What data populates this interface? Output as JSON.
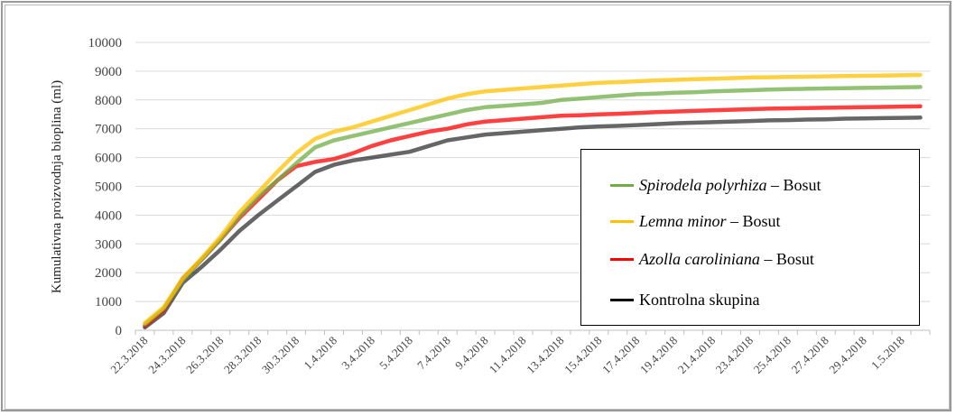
{
  "chart_data": {
    "type": "line",
    "title": "",
    "xlabel": "",
    "ylabel": "Kumulativna proizvodnja bioplina (ml)",
    "ylim": [
      0,
      10000
    ],
    "yticks": [
      0,
      1000,
      2000,
      3000,
      4000,
      5000,
      6000,
      7000,
      8000,
      9000,
      10000
    ],
    "grid": true,
    "legend_placement": "right",
    "x": [
      "22.3.2018",
      "23.3.2018",
      "24.3.2018",
      "25.3.2018",
      "26.3.2018",
      "27.3.2018",
      "28.3.2018",
      "29.3.2018",
      "30.3.2018",
      "31.3.2018",
      "1.4.2018",
      "2.4.2018",
      "3.4.2018",
      "4.4.2018",
      "5.4.2018",
      "6.4.2018",
      "7.4.2018",
      "8.4.2018",
      "9.4.2018",
      "10.4.2018",
      "11.4.2018",
      "12.4.2018",
      "13.4.2018",
      "14.4.2018",
      "15.4.2018",
      "16.4.2018",
      "17.4.2018",
      "18.4.2018",
      "19.4.2018",
      "20.4.2018",
      "21.4.2018",
      "22.4.2018",
      "23.4.2018",
      "24.4.2018",
      "25.4.2018",
      "26.4.2018",
      "27.4.2018",
      "28.4.2018",
      "29.4.2018",
      "30.4.2018",
      "1.5.2018",
      "2.5.2018"
    ],
    "xtick_labels": [
      "22.3.2018",
      "24.3.2018",
      "26.3.2018",
      "28.3.2018",
      "30.3.2018",
      "1.4.2018",
      "3.4.2018",
      "5.4.2018",
      "7.4.2018",
      "9.4.2018",
      "11.4.2018",
      "13.4.2018",
      "15.4.2018",
      "17.4.2018",
      "19.4.2018",
      "21.4.2018",
      "23.4.2018",
      "25.4.2018",
      "27.4.2018",
      "29.4.2018",
      "1.5.2018"
    ],
    "series": [
      {
        "name_italic": "Spirodela polyrhiza",
        "name_suffix": " – Bosut",
        "color": "#70ad47",
        "values": [
          200,
          750,
          1750,
          2450,
          3150,
          3950,
          4650,
          5200,
          5800,
          6350,
          6600,
          6750,
          6900,
          7050,
          7200,
          7350,
          7500,
          7650,
          7750,
          7800,
          7850,
          7900,
          8000,
          8050,
          8100,
          8150,
          8200,
          8220,
          8250,
          8270,
          8300,
          8320,
          8340,
          8360,
          8380,
          8390,
          8400,
          8410,
          8420,
          8430,
          8440,
          8450
        ]
      },
      {
        "name_italic": "Lemna minor",
        "name_suffix": " – Bosut",
        "color": "#ffc000",
        "values": [
          250,
          800,
          1800,
          2500,
          3250,
          4100,
          4800,
          5500,
          6150,
          6650,
          6900,
          7050,
          7250,
          7450,
          7650,
          7850,
          8050,
          8200,
          8300,
          8350,
          8400,
          8450,
          8500,
          8550,
          8600,
          8620,
          8650,
          8680,
          8700,
          8720,
          8740,
          8760,
          8780,
          8790,
          8800,
          8810,
          8820,
          8830,
          8840,
          8850,
          8860,
          8870
        ]
      },
      {
        "name_italic": "Azolla caroliniana",
        "name_suffix": " – Bosut",
        "color": "#ff0000",
        "values": [
          150,
          700,
          1800,
          2450,
          3150,
          3900,
          4550,
          5200,
          5700,
          5850,
          5950,
          6150,
          6400,
          6600,
          6750,
          6900,
          7000,
          7150,
          7250,
          7300,
          7350,
          7400,
          7450,
          7470,
          7500,
          7520,
          7550,
          7580,
          7600,
          7620,
          7640,
          7660,
          7680,
          7700,
          7710,
          7720,
          7730,
          7740,
          7750,
          7760,
          7770,
          7780
        ]
      },
      {
        "name_italic": "",
        "name_suffix": "Kontrolna skupina",
        "color": "#000000",
        "values": [
          100,
          600,
          1650,
          2200,
          2800,
          3450,
          4000,
          4500,
          5000,
          5500,
          5750,
          5900,
          6000,
          6100,
          6200,
          6400,
          6600,
          6700,
          6800,
          6850,
          6900,
          6950,
          7000,
          7050,
          7080,
          7100,
          7130,
          7160,
          7190,
          7210,
          7230,
          7250,
          7270,
          7290,
          7300,
          7320,
          7330,
          7350,
          7360,
          7370,
          7380,
          7390
        ]
      }
    ]
  }
}
